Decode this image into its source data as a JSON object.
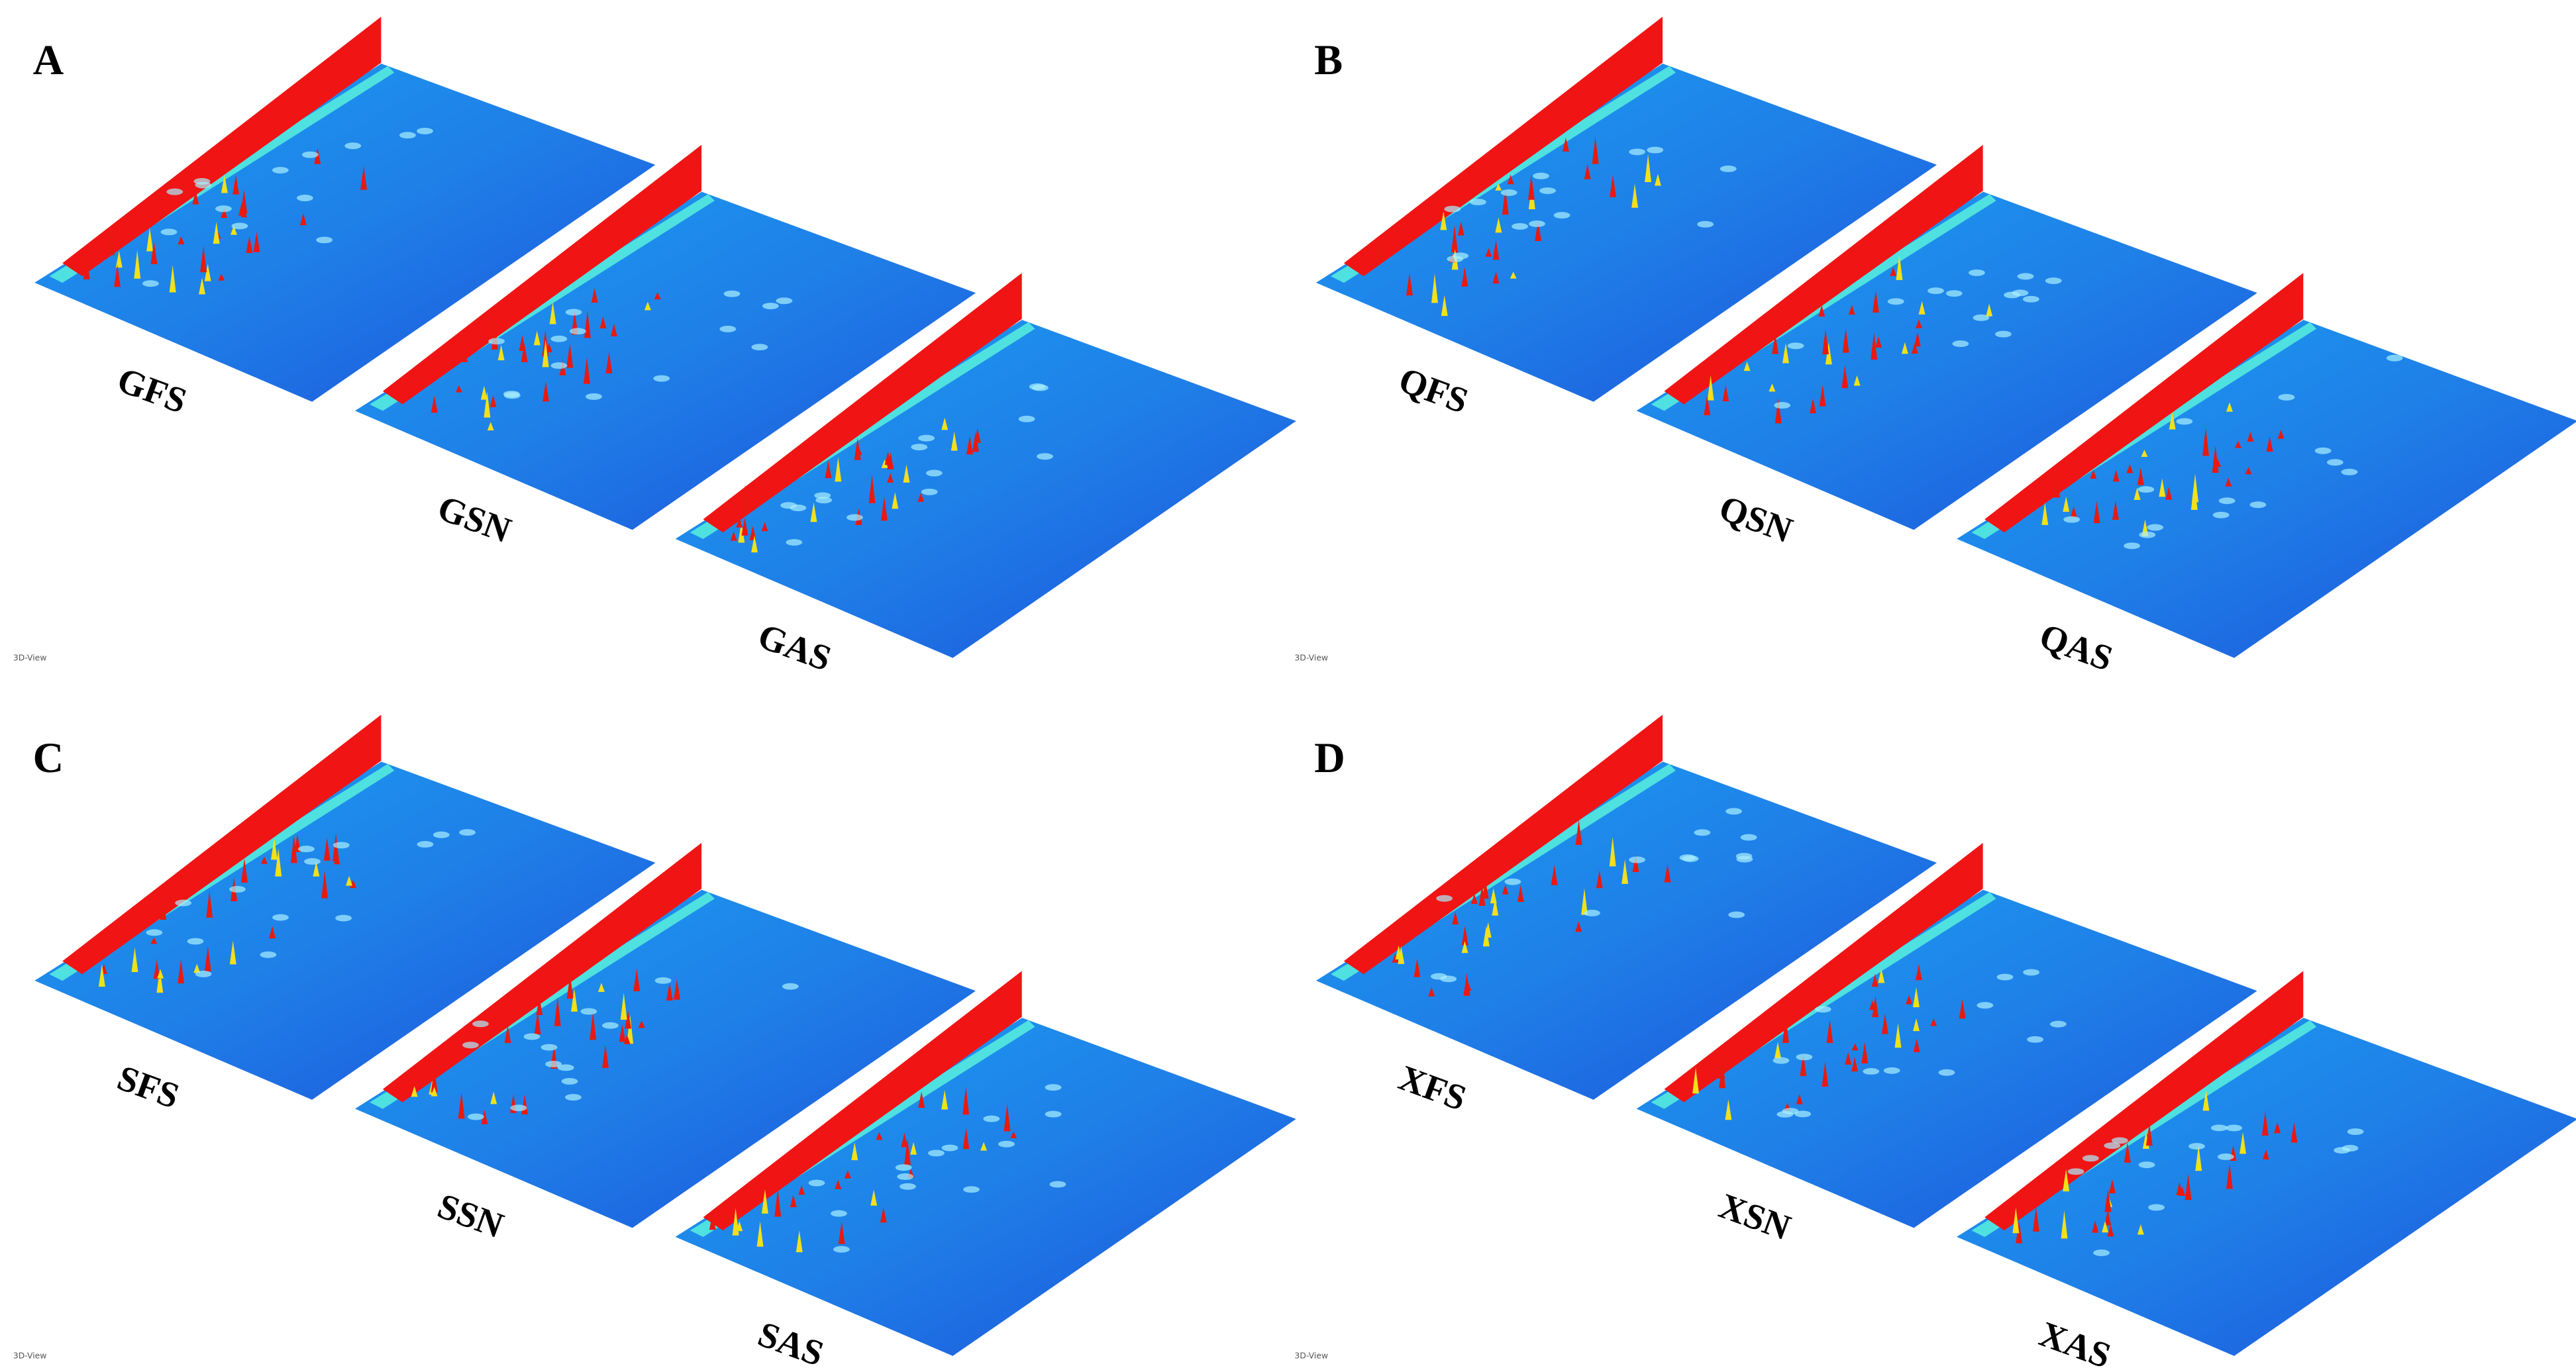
{
  "panels": [
    {
      "label": "A",
      "samples": [
        "GFS",
        "GSN",
        "GAS"
      ],
      "view": "3D-View"
    },
    {
      "label": "B",
      "samples": [
        "QFS",
        "QSN",
        "QAS"
      ],
      "view": "3D-View"
    },
    {
      "label": "C",
      "samples": [
        "SFS",
        "SSN",
        "SAS"
      ],
      "view": "3D-View"
    },
    {
      "label": "D",
      "samples": [
        "XFS",
        "XSN",
        "XAS"
      ],
      "view": "3D-View"
    }
  ]
}
